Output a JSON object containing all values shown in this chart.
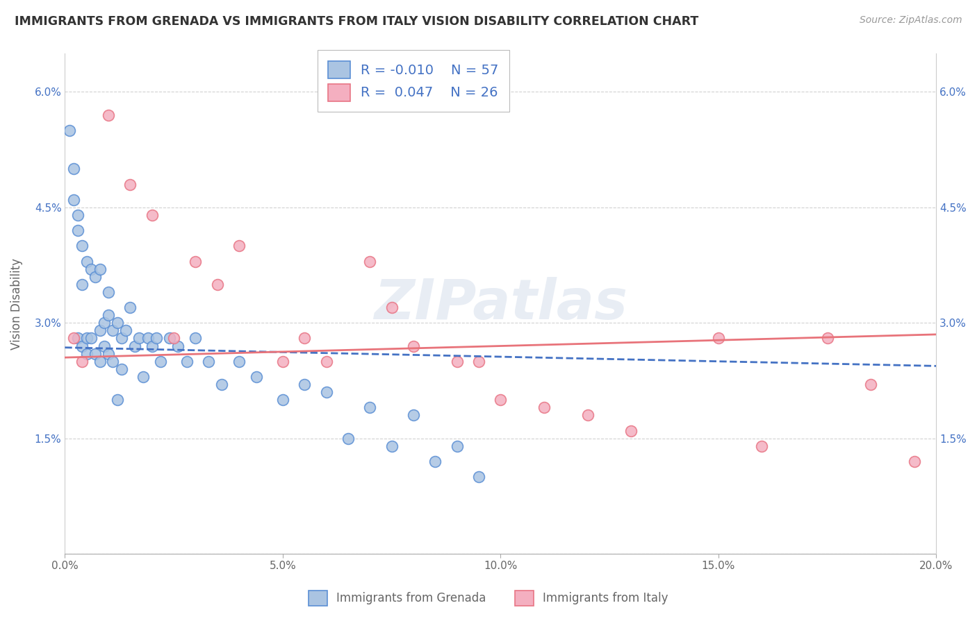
{
  "title": "IMMIGRANTS FROM GRENADA VS IMMIGRANTS FROM ITALY VISION DISABILITY CORRELATION CHART",
  "source": "Source: ZipAtlas.com",
  "ylabel": "Vision Disability",
  "xlim": [
    0.0,
    0.2
  ],
  "ylim": [
    0.0,
    0.065
  ],
  "xticks": [
    0.0,
    0.05,
    0.1,
    0.15,
    0.2
  ],
  "xticklabels": [
    "0.0%",
    "5.0%",
    "10.0%",
    "15.0%",
    "20.0%"
  ],
  "yticks": [
    0.0,
    0.015,
    0.03,
    0.045,
    0.06
  ],
  "yticklabels": [
    "",
    "1.5%",
    "3.0%",
    "4.5%",
    "6.0%"
  ],
  "grenada_R": -0.01,
  "grenada_N": 57,
  "italy_R": 0.047,
  "italy_N": 26,
  "grenada_color": "#aac4e2",
  "italy_color": "#f4afc0",
  "grenada_edge_color": "#5b8fd4",
  "italy_edge_color": "#e87585",
  "grenada_line_color": "#4472c4",
  "italy_line_color": "#e8737a",
  "legend_labels": [
    "Immigrants from Grenada",
    "Immigrants from Italy"
  ],
  "watermark": "ZIPatlas",
  "grenada_x": [
    0.001,
    0.002,
    0.002,
    0.003,
    0.003,
    0.003,
    0.004,
    0.004,
    0.004,
    0.005,
    0.005,
    0.005,
    0.006,
    0.006,
    0.007,
    0.007,
    0.008,
    0.008,
    0.008,
    0.009,
    0.009,
    0.01,
    0.01,
    0.011,
    0.011,
    0.012,
    0.013,
    0.013,
    0.014,
    0.015,
    0.016,
    0.017,
    0.018,
    0.019,
    0.02,
    0.021,
    0.022,
    0.024,
    0.026,
    0.028,
    0.03,
    0.033,
    0.036,
    0.04,
    0.044,
    0.05,
    0.055,
    0.06,
    0.065,
    0.07,
    0.075,
    0.08,
    0.085,
    0.09,
    0.095,
    0.01,
    0.012
  ],
  "grenada_y": [
    0.055,
    0.05,
    0.046,
    0.044,
    0.042,
    0.028,
    0.04,
    0.035,
    0.027,
    0.038,
    0.028,
    0.026,
    0.037,
    0.028,
    0.036,
    0.026,
    0.037,
    0.029,
    0.025,
    0.03,
    0.027,
    0.031,
    0.026,
    0.029,
    0.025,
    0.03,
    0.028,
    0.024,
    0.029,
    0.032,
    0.027,
    0.028,
    0.023,
    0.028,
    0.027,
    0.028,
    0.025,
    0.028,
    0.027,
    0.025,
    0.028,
    0.025,
    0.022,
    0.025,
    0.023,
    0.02,
    0.022,
    0.021,
    0.015,
    0.019,
    0.014,
    0.018,
    0.012,
    0.014,
    0.01,
    0.034,
    0.02
  ],
  "italy_x": [
    0.002,
    0.004,
    0.01,
    0.015,
    0.02,
    0.025,
    0.03,
    0.035,
    0.04,
    0.05,
    0.055,
    0.06,
    0.07,
    0.075,
    0.08,
    0.09,
    0.095,
    0.1,
    0.11,
    0.12,
    0.13,
    0.15,
    0.16,
    0.175,
    0.185,
    0.195
  ],
  "italy_y": [
    0.028,
    0.025,
    0.057,
    0.048,
    0.044,
    0.028,
    0.038,
    0.035,
    0.04,
    0.025,
    0.028,
    0.025,
    0.038,
    0.032,
    0.027,
    0.025,
    0.025,
    0.02,
    0.019,
    0.018,
    0.016,
    0.028,
    0.014,
    0.028,
    0.022,
    0.012
  ],
  "grenada_trendline": [
    0.0268,
    0.0244
  ],
  "italy_trendline": [
    0.0255,
    0.0285
  ]
}
